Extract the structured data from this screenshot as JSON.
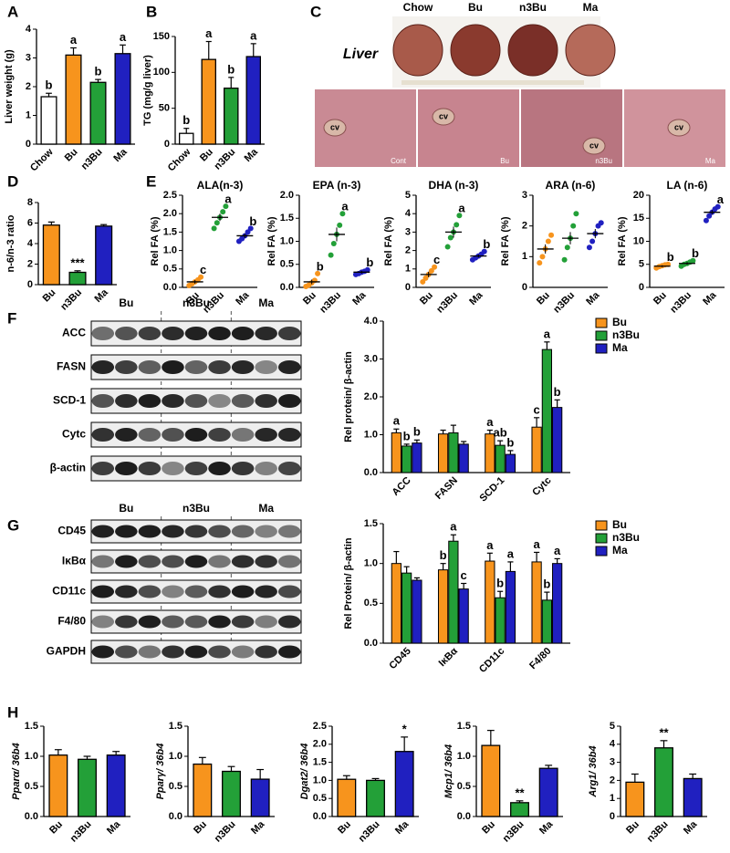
{
  "panel_labels": [
    "A",
    "B",
    "C",
    "D",
    "E",
    "F",
    "G",
    "H"
  ],
  "liver_images": {
    "title": "Liver",
    "groups": [
      "Chow",
      "Bu",
      "n3Bu",
      "Ma"
    ],
    "histology_labels": [
      "Cont",
      "Bu",
      "n3Bu",
      "Ma"
    ],
    "vessel_label": "cv"
  },
  "blots": [
    {
      "groups": [
        "Bu",
        "n3Bu",
        "Ma"
      ],
      "rows": [
        "ACC",
        "FASN",
        "SCD-1",
        "Cytc",
        "β-actin"
      ]
    },
    {
      "groups": [
        "Bu",
        "n3Bu",
        "Ma"
      ],
      "rows": [
        "CD45",
        "IκBα",
        "CD11c",
        "F4/80",
        "GAPDH"
      ]
    }
  ],
  "chart_data": [
    {
      "type": "bar",
      "ylabel": "Liver weight (g)",
      "categories": [
        "Chow",
        "Bu",
        "n3Bu",
        "Ma"
      ],
      "values": [
        1.65,
        3.1,
        2.15,
        3.15
      ],
      "errors": [
        0.12,
        0.25,
        0.1,
        0.3
      ],
      "colors": [
        "#ffffff",
        "#f7941d",
        "#23a038",
        "#2020c0"
      ],
      "annotations": [
        "b",
        "a",
        "b",
        "a"
      ],
      "ylim": [
        0,
        4
      ],
      "yticks": [
        0,
        1,
        2,
        3,
        4
      ]
    },
    {
      "type": "bar",
      "ylabel": "TG (mg/g liver)",
      "categories": [
        "Chow",
        "Bu",
        "n3Bu",
        "Ma"
      ],
      "values": [
        15,
        118,
        78,
        122
      ],
      "errors": [
        7,
        25,
        15,
        18
      ],
      "colors": [
        "#ffffff",
        "#f7941d",
        "#23a038",
        "#2020c0"
      ],
      "annotations": [
        "b",
        "a",
        "b",
        "a"
      ],
      "ylim": [
        0,
        150
      ],
      "yticks": [
        0,
        50,
        100,
        150
      ]
    },
    {
      "type": "bar",
      "ylabel": "n-6/n-3 ratio",
      "categories": [
        "Bu",
        "n3Bu",
        "Ma"
      ],
      "values": [
        5.8,
        1.2,
        5.7
      ],
      "errors": [
        0.3,
        0.15,
        0.15
      ],
      "colors": [
        "#f7941d",
        "#23a038",
        "#2020c0"
      ],
      "annotations": [
        null,
        "***",
        null
      ],
      "ylim": [
        0,
        8
      ],
      "yticks": [
        0,
        2,
        4,
        6,
        8
      ]
    },
    {
      "type": "dot",
      "title": "ALA(n-3)",
      "ylabel": "Rel FA (%)",
      "categories": [
        "Bu",
        "n3Bu",
        "Ma"
      ],
      "colors": [
        "#f7941d",
        "#23a038",
        "#2020c0"
      ],
      "points": [
        [
          0.05,
          0.1,
          0.15,
          0.2,
          0.28
        ],
        [
          1.6,
          1.75,
          1.9,
          2.05,
          2.2
        ],
        [
          1.25,
          1.32,
          1.4,
          1.5,
          1.6
        ]
      ],
      "means": [
        0.15,
        1.9,
        1.4
      ],
      "errors": [
        0.05,
        0.1,
        0.06
      ],
      "annotations": [
        "c",
        "a",
        "b"
      ],
      "ylim": [
        0,
        2.5
      ],
      "yticks": [
        {
          "value": 0,
          "label": "0.0"
        },
        0.5,
        {
          "value": 1,
          "label": "1.0"
        },
        1.5,
        {
          "value": 2,
          "label": "2.0"
        },
        2.5
      ]
    },
    {
      "type": "dot",
      "title": "EPA (n-3)",
      "ylabel": "Rel FA (%)",
      "categories": [
        "Bu",
        "n3Bu",
        "Ma"
      ],
      "colors": [
        "#f7941d",
        "#23a038",
        "#2020c0"
      ],
      "points": [
        [
          0.02,
          0.05,
          0.1,
          0.15,
          0.3
        ],
        [
          0.7,
          0.95,
          1.15,
          1.35,
          1.6
        ],
        [
          0.28,
          0.3,
          0.33,
          0.35,
          0.38
        ]
      ],
      "means": [
        0.12,
        1.15,
        0.33
      ],
      "errors": [
        0.05,
        0.15,
        0.03
      ],
      "annotations": [
        "b",
        "a",
        "b"
      ],
      "ylim": [
        0,
        2
      ],
      "yticks": [
        {
          "value": 0,
          "label": "0.0"
        },
        0.5,
        {
          "value": 1,
          "label": "1.0"
        },
        1.5,
        {
          "value": 2,
          "label": "2.0"
        }
      ]
    },
    {
      "type": "dot",
      "title": "DHA (n-3)",
      "ylabel": "Rel FA (%)",
      "categories": [
        "Bu",
        "n3Bu",
        "Ma"
      ],
      "colors": [
        "#f7941d",
        "#23a038",
        "#2020c0"
      ],
      "points": [
        [
          0.3,
          0.5,
          0.7,
          0.9,
          1.1
        ],
        [
          2.2,
          2.7,
          3.0,
          3.4,
          3.9
        ],
        [
          1.5,
          1.6,
          1.7,
          1.8,
          1.95
        ]
      ],
      "means": [
        0.7,
        3.0,
        1.7
      ],
      "errors": [
        0.15,
        0.3,
        0.08
      ],
      "annotations": [
        "c",
        "a",
        "b"
      ],
      "ylim": [
        0,
        5
      ],
      "yticks": [
        0,
        1,
        2,
        3,
        4,
        5
      ]
    },
    {
      "type": "dot",
      "title": "ARA (n-6)",
      "ylabel": "Rel FA (%)",
      "categories": [
        "Bu",
        "n3Bu",
        "Ma"
      ],
      "colors": [
        "#f7941d",
        "#23a038",
        "#2020c0"
      ],
      "points": [
        [
          0.8,
          1.0,
          1.25,
          1.5,
          1.7
        ],
        [
          0.9,
          1.3,
          1.6,
          2.0,
          2.4
        ],
        [
          1.3,
          1.5,
          1.75,
          2.0,
          2.1
        ]
      ],
      "means": [
        1.25,
        1.6,
        1.75
      ],
      "errors": [
        0.15,
        0.2,
        0.15
      ],
      "ylim": [
        0,
        3
      ],
      "yticks": [
        0,
        1,
        2,
        3
      ]
    },
    {
      "type": "dot",
      "title": "LA (n-6)",
      "ylabel": "Rel FA (%)",
      "categories": [
        "Bu",
        "n3Bu",
        "Ma"
      ],
      "colors": [
        "#f7941d",
        "#23a038",
        "#2020c0"
      ],
      "points": [
        [
          4.2,
          4.5,
          4.7,
          4.9,
          5.0
        ],
        [
          4.6,
          5.0,
          5.2,
          5.5,
          5.8
        ],
        [
          14.5,
          15.5,
          16.3,
          17.0,
          17.5
        ]
      ],
      "means": [
        4.6,
        5.2,
        16.3
      ],
      "errors": [
        0.2,
        0.3,
        0.5
      ],
      "annotations": [
        "b",
        "b",
        "a"
      ],
      "ylim": [
        0,
        20
      ],
      "yticks": [
        0,
        5,
        10,
        15,
        20
      ]
    },
    {
      "type": "grouped_bar",
      "ylabel": "Rel protein/ β-actin",
      "categories": [
        "ACC",
        "FASN",
        "SCD-1",
        "Cytc"
      ],
      "series": [
        {
          "name": "Bu",
          "color": "#f7941d",
          "values": [
            1.05,
            1.02,
            1.02,
            1.2
          ],
          "errors": [
            0.1,
            0.1,
            0.1,
            0.25
          ],
          "annotations": [
            "a",
            null,
            "a",
            "c"
          ]
        },
        {
          "name": "n3Bu",
          "color": "#23a038",
          "values": [
            0.7,
            1.05,
            0.72,
            3.25
          ],
          "errors": [
            0.05,
            0.2,
            0.12,
            0.2
          ],
          "annotations": [
            "b",
            null,
            "ab",
            "a"
          ]
        },
        {
          "name": "Ma",
          "color": "#2020c0",
          "values": [
            0.78,
            0.75,
            0.48,
            1.72
          ],
          "errors": [
            0.08,
            0.07,
            0.1,
            0.2
          ],
          "annotations": [
            "b",
            null,
            "b",
            "b"
          ]
        }
      ],
      "ylim": [
        0,
        4
      ],
      "yticks": [
        {
          "value": 0,
          "label": "0.0"
        },
        {
          "value": 1,
          "label": "1.0"
        },
        {
          "value": 2,
          "label": "2.0"
        },
        {
          "value": 3,
          "label": "3.0"
        },
        {
          "value": 4,
          "label": "4.0"
        }
      ]
    },
    {
      "type": "grouped_bar",
      "ylabel": "Rel Protein/ β-actin",
      "categories": [
        "CD45",
        "IκBα",
        "CD11c",
        "F4/80"
      ],
      "series": [
        {
          "name": "Bu",
          "color": "#f7941d",
          "values": [
            1.0,
            0.92,
            1.03,
            1.02
          ],
          "errors": [
            0.15,
            0.08,
            0.1,
            0.12
          ],
          "annotations": [
            null,
            "b",
            "a",
            "a"
          ]
        },
        {
          "name": "n3Bu",
          "color": "#23a038",
          "values": [
            0.88,
            1.28,
            0.57,
            0.54
          ],
          "errors": [
            0.08,
            0.08,
            0.08,
            0.1
          ],
          "annotations": [
            null,
            "a",
            "b",
            "b"
          ]
        },
        {
          "name": "Ma",
          "color": "#2020c0",
          "values": [
            0.79,
            0.68,
            0.9,
            1.0
          ],
          "errors": [
            0.03,
            0.07,
            0.12,
            0.06
          ],
          "annotations": [
            null,
            "c",
            "a",
            "a"
          ]
        }
      ],
      "ylim": [
        0,
        1.5
      ],
      "yticks": [
        {
          "value": 0,
          "label": "0.0"
        },
        0.5,
        {
          "value": 1,
          "label": "1.0"
        },
        1.5
      ]
    },
    {
      "type": "bar",
      "ylabel": "Pparα/ 36b4",
      "categories": [
        "Bu",
        "n3Bu",
        "Ma"
      ],
      "values": [
        1.02,
        0.95,
        1.02
      ],
      "errors": [
        0.09,
        0.05,
        0.06
      ],
      "colors": [
        "#f7941d",
        "#23a038",
        "#2020c0"
      ],
      "ylim": [
        0,
        1.5
      ],
      "yticks": [
        {
          "value": 0,
          "label": "0.0"
        },
        0.5,
        {
          "value": 1,
          "label": "1.0"
        },
        1.5
      ]
    },
    {
      "type": "bar",
      "ylabel": "Pparγ/ 36b4",
      "categories": [
        "Bu",
        "n3Bu",
        "Ma"
      ],
      "values": [
        0.87,
        0.75,
        0.62
      ],
      "errors": [
        0.11,
        0.08,
        0.16
      ],
      "colors": [
        "#f7941d",
        "#23a038",
        "#2020c0"
      ],
      "ylim": [
        0,
        1.5
      ],
      "yticks": [
        {
          "value": 0,
          "label": "0.0"
        },
        0.5,
        {
          "value": 1,
          "label": "1.0"
        },
        1.5
      ]
    },
    {
      "type": "bar",
      "ylabel": "Dgat2/ 36b4",
      "categories": [
        "Bu",
        "n3Bu",
        "Ma"
      ],
      "values": [
        1.03,
        1.0,
        1.8
      ],
      "errors": [
        0.1,
        0.05,
        0.4
      ],
      "colors": [
        "#f7941d",
        "#23a038",
        "#2020c0"
      ],
      "annotations": [
        null,
        null,
        "*"
      ],
      "ylim": [
        0,
        2.5
      ],
      "yticks": [
        {
          "value": 0,
          "label": "0.0"
        },
        0.5,
        {
          "value": 1,
          "label": "1.0"
        },
        1.5,
        {
          "value": 2,
          "label": "2.0"
        },
        2.5
      ]
    },
    {
      "type": "bar",
      "ylabel": "Mcp1/ 36b4",
      "categories": [
        "Bu",
        "n3Bu",
        "Ma"
      ],
      "values": [
        1.18,
        0.23,
        0.8
      ],
      "errors": [
        0.25,
        0.03,
        0.05
      ],
      "colors": [
        "#f7941d",
        "#23a038",
        "#2020c0"
      ],
      "annotations": [
        null,
        "**",
        null
      ],
      "ylim": [
        0,
        1.5
      ],
      "yticks": [
        {
          "value": 0,
          "label": "0.0"
        },
        0.5,
        {
          "value": 1,
          "label": "1.0"
        },
        1.5
      ]
    },
    {
      "type": "bar",
      "ylabel": "Arg1/ 36b4",
      "categories": [
        "Bu",
        "n3Bu",
        "Ma"
      ],
      "values": [
        1.9,
        3.8,
        2.1
      ],
      "errors": [
        0.45,
        0.4,
        0.25
      ],
      "colors": [
        "#f7941d",
        "#23a038",
        "#2020c0"
      ],
      "annotations": [
        null,
        "**",
        null
      ],
      "ylim": [
        0,
        5
      ],
      "yticks": [
        0,
        1,
        2,
        3,
        4,
        5
      ]
    }
  ]
}
